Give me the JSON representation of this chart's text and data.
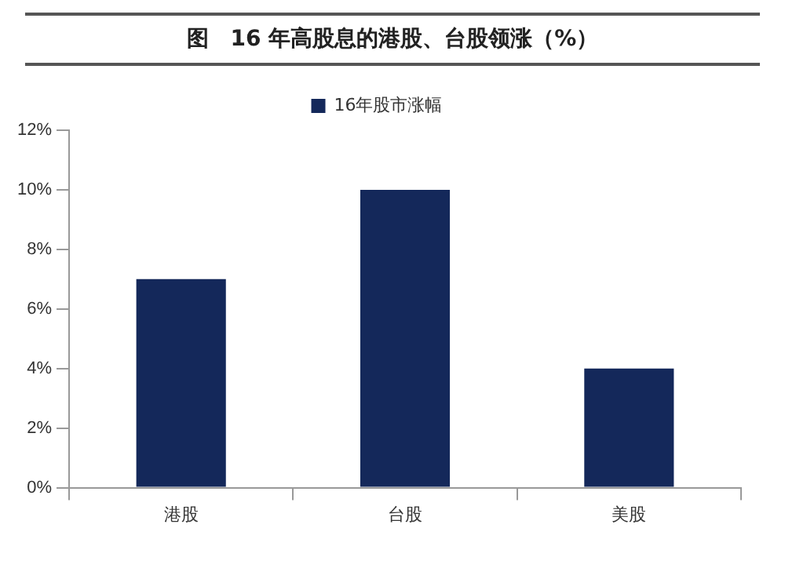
{
  "chart_data": {
    "type": "bar",
    "title": "图　16 年高股息的港股、台股领涨（%）",
    "categories": [
      "港股",
      "台股",
      "美股"
    ],
    "series": [
      {
        "name": "16年股市涨幅",
        "color": "#14285a",
        "values": [
          7,
          10,
          4
        ]
      }
    ],
    "ylim": [
      0,
      12
    ],
    "yticks": [
      {
        "value": 0,
        "label": "0%"
      },
      {
        "value": 2,
        "label": "2%"
      },
      {
        "value": 4,
        "label": "4%"
      },
      {
        "value": 6,
        "label": "6%"
      },
      {
        "value": 8,
        "label": "8%"
      },
      {
        "value": 10,
        "label": "10%"
      },
      {
        "value": 12,
        "label": "12%"
      }
    ],
    "grid": false,
    "legend": "top"
  }
}
